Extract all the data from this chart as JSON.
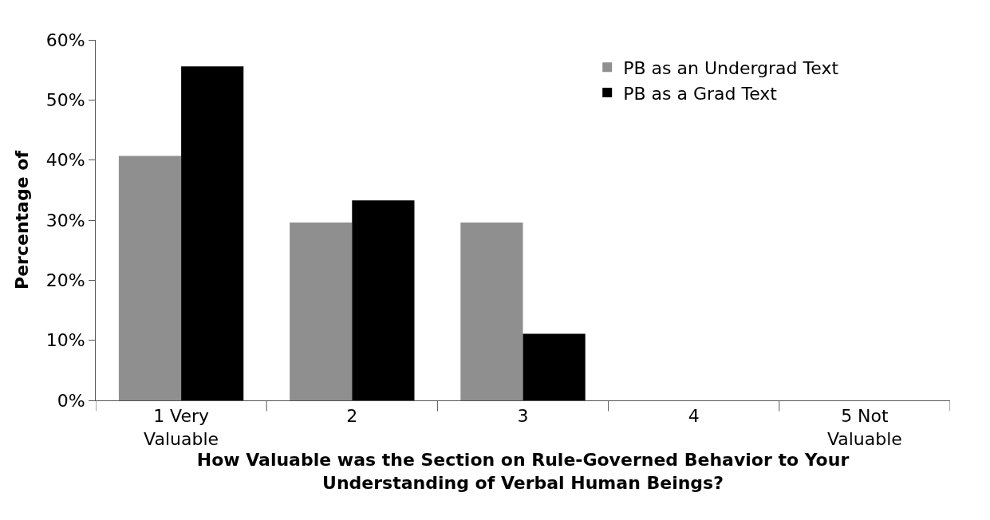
{
  "chart_data": {
    "type": "bar",
    "categories": [
      "1 Very Valuable",
      "2",
      "3",
      "4",
      "5 Not Valuable"
    ],
    "series": [
      {
        "name": "PB as an Undergrad Text",
        "color": "#8f8f8f",
        "values": [
          40.7,
          29.6,
          29.6,
          0,
          0
        ]
      },
      {
        "name": "PB as a Grad Text",
        "color": "#000000",
        "values": [
          55.6,
          33.3,
          11.1,
          0,
          0
        ]
      }
    ],
    "xlabel": "How Valuable was the Section on Rule-Governed Behavior to Your Understanding of Verbal Human Beings?",
    "ylabel": "Percentage of",
    "ylim": [
      0,
      60
    ],
    "yticks": [
      {
        "value": 0,
        "label": "0%"
      },
      {
        "value": 10,
        "label": "10%"
      },
      {
        "value": 20,
        "label": "20%"
      },
      {
        "value": 30,
        "label": "30%"
      },
      {
        "value": 40,
        "label": "40%"
      },
      {
        "value": 50,
        "label": "50%"
      },
      {
        "value": 60,
        "label": "60%"
      }
    ],
    "legend": "top right"
  }
}
